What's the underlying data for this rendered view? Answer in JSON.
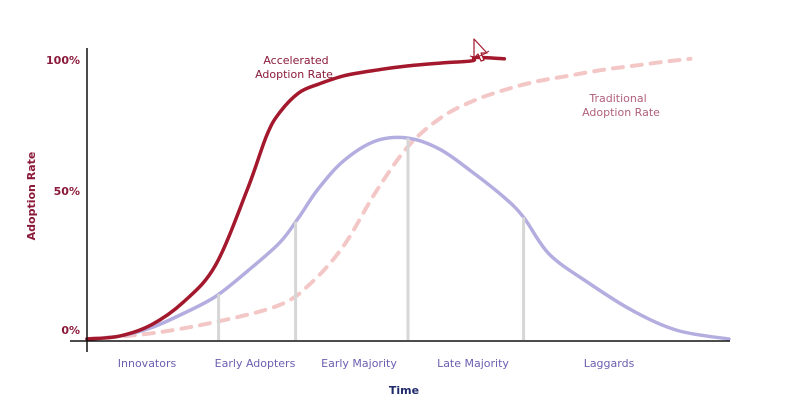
{
  "chart_data": {
    "type": "line",
    "xlabel": "Time",
    "ylabel": "Adoption Rate",
    "yticks": [
      "0%",
      "50%",
      "100%"
    ],
    "ylim": [
      0,
      100
    ],
    "xlim": [
      0,
      100
    ],
    "grid": false,
    "segments": [
      "Innovators",
      "Early Adopters",
      "Early Majority",
      "Late Majority",
      "Laggards"
    ],
    "segment_boundaries": [
      20.5,
      32.5,
      50,
      68
    ],
    "annotations": {
      "accelerated": [
        "Accelerated",
        "Adoption Rate"
      ],
      "traditional": [
        "Traditional",
        "Adoption Rate"
      ]
    },
    "series": [
      {
        "name": "Accelerated Adoption Rate",
        "color": "#a3182c",
        "style": "solid",
        "x": [
          0,
          5,
          10,
          15,
          20,
          25,
          28,
          30,
          33,
          36,
          40,
          45,
          50,
          55,
          60,
          65,
          60.5
        ],
        "y": [
          0,
          1,
          5,
          13,
          26,
          53,
          72,
          80,
          87,
          90,
          93,
          95,
          96.5,
          97.5,
          98.3,
          99,
          99.5
        ]
      },
      {
        "name": "Traditional Adoption Rate",
        "color": "#f4c7c7",
        "style": "dashed",
        "x": [
          0,
          10,
          20,
          30,
          35,
          40,
          45,
          50,
          55,
          60,
          65,
          70,
          75,
          80,
          85,
          90,
          94
        ],
        "y": [
          0,
          2,
          6,
          12,
          20,
          33,
          52,
          68,
          78,
          84,
          88,
          91,
          93,
          95,
          96.5,
          98,
          99
        ]
      },
      {
        "name": "Bell Curve",
        "color": "#b4aee0",
        "style": "solid",
        "x": [
          0,
          5,
          10,
          15,
          20,
          25,
          30,
          33,
          36,
          40,
          45,
          50,
          55,
          60,
          65,
          68,
          72,
          78,
          85,
          92,
          100
        ],
        "y": [
          0,
          1,
          4,
          9,
          15,
          24,
          34,
          43,
          53,
          63,
          70,
          71,
          67,
          59,
          50,
          43,
          30,
          20,
          10,
          3,
          0
        ]
      }
    ]
  }
}
